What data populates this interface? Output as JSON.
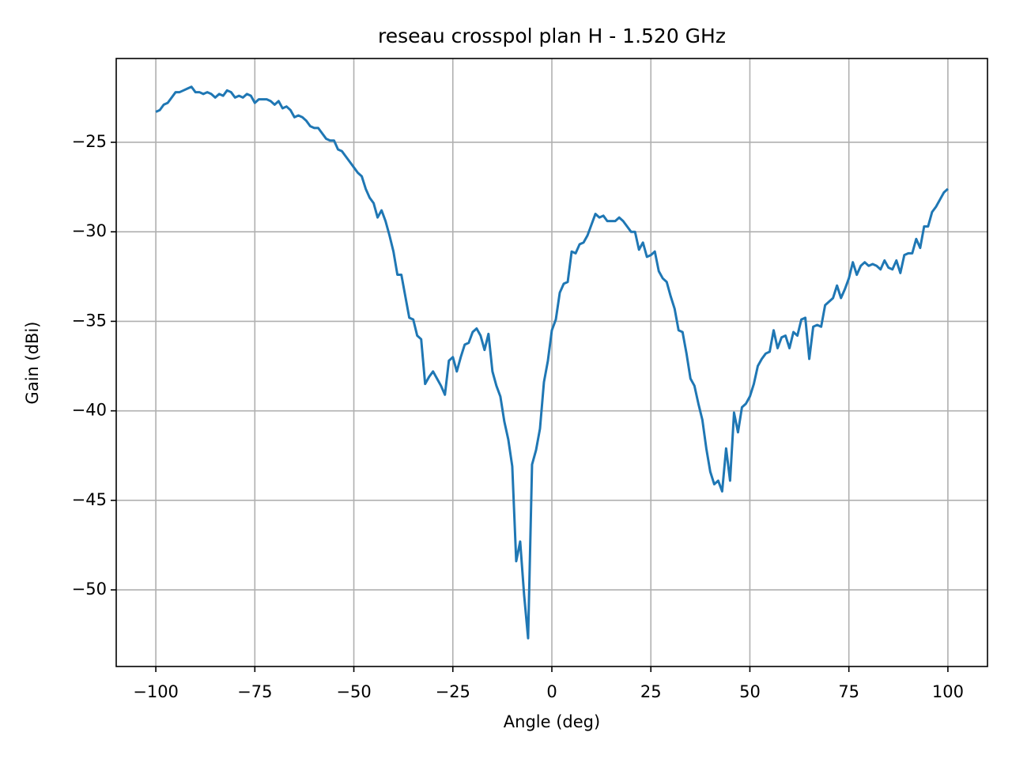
{
  "chart_data": {
    "type": "line",
    "title": "reseau crosspol plan H - 1.520 GHz",
    "x_label": "Angle (deg)",
    "y_label": "Gain (dBi)",
    "xlim": [
      -110,
      110
    ],
    "ylim": [
      -54.28,
      -20.32
    ],
    "xticks": [
      {
        "value": -100,
        "label": "−100"
      },
      {
        "value": -75,
        "label": "−75"
      },
      {
        "value": -50,
        "label": "−50"
      },
      {
        "value": -25,
        "label": "−25"
      },
      0,
      25,
      50,
      75,
      100
    ],
    "yticks": [
      {
        "value": -50,
        "label": "−50"
      },
      {
        "value": -45,
        "label": "−45"
      },
      {
        "value": -40,
        "label": "−40"
      },
      {
        "value": -35,
        "label": "−35"
      },
      {
        "value": -30,
        "label": "−30"
      },
      {
        "value": -25,
        "label": "−25"
      }
    ],
    "grid": true,
    "x": [
      -100,
      -99,
      -98,
      -97,
      -96,
      -95,
      -94,
      -93,
      -92,
      -91,
      -90,
      -89,
      -88,
      -87,
      -86,
      -85,
      -84,
      -83,
      -82,
      -81,
      -80,
      -79,
      -78,
      -77,
      -76,
      -75,
      -74,
      -73,
      -72,
      -71,
      -70,
      -69,
      -68,
      -67,
      -66,
      -65,
      -64,
      -63,
      -62,
      -61,
      -60,
      -59,
      -58,
      -57,
      -56,
      -55,
      -54,
      -53,
      -52,
      -51,
      -50,
      -49,
      -48,
      -47,
      -46,
      -45,
      -44,
      -43,
      -42,
      -41,
      -40,
      -39,
      -38,
      -37,
      -36,
      -35,
      -34,
      -33,
      -32,
      -31,
      -30,
      -29,
      -28,
      -27,
      -26,
      -25,
      -24,
      -23,
      -22,
      -21,
      -20,
      -19,
      -18,
      -17,
      -16,
      -15,
      -14,
      -13,
      -12,
      -11,
      -10,
      -9,
      -8,
      -7,
      -6,
      -5,
      -4,
      -3,
      -2,
      -1,
      0,
      1,
      2,
      3,
      4,
      5,
      6,
      7,
      8,
      9,
      10,
      11,
      12,
      13,
      14,
      15,
      16,
      17,
      18,
      19,
      20,
      21,
      22,
      23,
      24,
      25,
      26,
      27,
      28,
      29,
      30,
      31,
      32,
      33,
      34,
      35,
      36,
      37,
      38,
      39,
      40,
      41,
      42,
      43,
      44,
      45,
      46,
      47,
      48,
      49,
      50,
      51,
      52,
      53,
      54,
      55,
      56,
      57,
      58,
      59,
      60,
      61,
      62,
      63,
      64,
      65,
      66,
      67,
      68,
      69,
      70,
      71,
      72,
      73,
      74,
      75,
      76,
      77,
      78,
      79,
      80,
      81,
      82,
      83,
      84,
      85,
      86,
      87,
      88,
      89,
      90,
      91,
      92,
      93,
      94,
      95,
      96,
      97,
      98,
      99,
      100
    ],
    "series": [
      {
        "color": "#1f77b4",
        "values": [
          -23.3,
          -23.2,
          -22.9,
          -22.8,
          -22.5,
          -22.2,
          -22.2,
          -22.1,
          -22.0,
          -21.9,
          -22.2,
          -22.2,
          -22.3,
          -22.2,
          -22.3,
          -22.5,
          -22.3,
          -22.4,
          -22.1,
          -22.2,
          -22.5,
          -22.4,
          -22.5,
          -22.3,
          -22.4,
          -22.8,
          -22.6,
          -22.6,
          -22.6,
          -22.7,
          -22.9,
          -22.7,
          -23.1,
          -23.0,
          -23.2,
          -23.6,
          -23.5,
          -23.6,
          -23.8,
          -24.1,
          -24.2,
          -24.2,
          -24.5,
          -24.8,
          -24.9,
          -24.9,
          -25.4,
          -25.5,
          -25.8,
          -26.1,
          -26.4,
          -26.7,
          -26.9,
          -27.6,
          -28.1,
          -28.4,
          -29.2,
          -28.8,
          -29.4,
          -30.2,
          -31.1,
          -32.4,
          -32.4,
          -33.6,
          -34.8,
          -34.9,
          -35.8,
          -36.0,
          -38.5,
          -38.1,
          -37.8,
          -38.2,
          -38.6,
          -39.1,
          -37.2,
          -37.0,
          -37.8,
          -37.0,
          -36.3,
          -36.2,
          -35.6,
          -35.4,
          -35.8,
          -36.6,
          -35.7,
          -37.8,
          -38.6,
          -39.2,
          -40.6,
          -41.6,
          -43.1,
          -48.4,
          -47.3,
          -50.3,
          -52.7,
          -43.0,
          -42.2,
          -41.0,
          -38.4,
          -37.2,
          -35.5,
          -34.9,
          -33.4,
          -32.9,
          -32.8,
          -31.1,
          -31.2,
          -30.7,
          -30.6,
          -30.2,
          -29.6,
          -29.0,
          -29.2,
          -29.1,
          -29.4,
          -29.4,
          -29.4,
          -29.2,
          -29.4,
          -29.7,
          -30.0,
          -30.0,
          -31.0,
          -30.6,
          -31.4,
          -31.3,
          -31.1,
          -32.2,
          -32.6,
          -32.8,
          -33.6,
          -34.3,
          -35.5,
          -35.6,
          -36.8,
          -38.2,
          -38.6,
          -39.6,
          -40.5,
          -42.1,
          -43.4,
          -44.1,
          -43.9,
          -44.5,
          -42.1,
          -43.9,
          -40.1,
          -41.2,
          -39.8,
          -39.6,
          -39.2,
          -38.5,
          -37.5,
          -37.1,
          -36.8,
          -36.7,
          -35.5,
          -36.5,
          -35.9,
          -35.8,
          -36.5,
          -35.6,
          -35.8,
          -34.9,
          -34.8,
          -37.1,
          -35.3,
          -35.2,
          -35.3,
          -34.1,
          -33.9,
          -33.7,
          -33.0,
          -33.7,
          -33.2,
          -32.6,
          -31.7,
          -32.4,
          -31.9,
          -31.7,
          -31.9,
          -31.8,
          -31.9,
          -32.1,
          -31.6,
          -32.0,
          -32.1,
          -31.6,
          -32.3,
          -31.3,
          -31.2,
          -31.2,
          -30.4,
          -30.9,
          -29.7,
          -29.7,
          -28.9,
          -28.6,
          -28.2,
          -27.8,
          -27.6
        ]
      }
    ]
  }
}
